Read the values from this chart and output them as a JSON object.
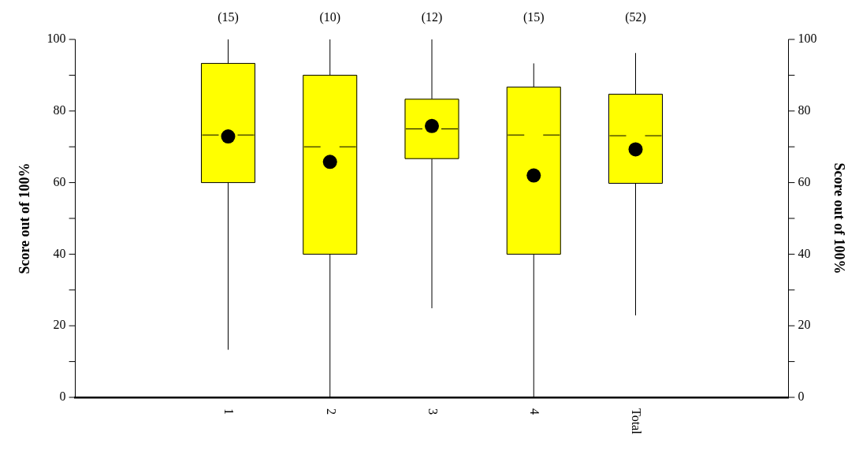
{
  "chart_data": {
    "type": "box",
    "ylabel": "Score out of 100%",
    "y2label": "Score out of 100%",
    "categories": [
      "1",
      "2",
      "3",
      "4",
      "Total"
    ],
    "series": [
      {
        "color": "#ffff00",
        "boxes": [
          {
            "low": 13.3,
            "q1": 60,
            "median": 73.3,
            "q3": 93.3,
            "high": 100,
            "mean": 72.9
          },
          {
            "low": 0,
            "q1": 40,
            "median": 70,
            "q3": 90,
            "high": 100,
            "mean": 65.8
          },
          {
            "low": 24.9,
            "q1": 66.7,
            "median": 75,
            "q3": 83.3,
            "high": 100,
            "mean": 75.8
          },
          {
            "low": 0,
            "q1": 40,
            "median": 73.3,
            "q3": 86.7,
            "high": 93.3,
            "mean": 62
          },
          {
            "low": 22.9,
            "q1": 59.8,
            "median": 73.1,
            "q3": 84.7,
            "high": 96.2,
            "mean": 69.3
          }
        ]
      }
    ],
    "ylim": [
      0,
      100
    ],
    "yticks": [
      0,
      20,
      40,
      60,
      80,
      100
    ],
    "y2lim": [
      0,
      100
    ],
    "y2ticks": [
      0,
      20,
      40,
      60,
      80,
      100
    ],
    "annotations": [
      "(15)",
      "(10)",
      "(12)",
      "(15)",
      "(52)"
    ],
    "grid": false,
    "legend": false,
    "marker": "circle"
  }
}
